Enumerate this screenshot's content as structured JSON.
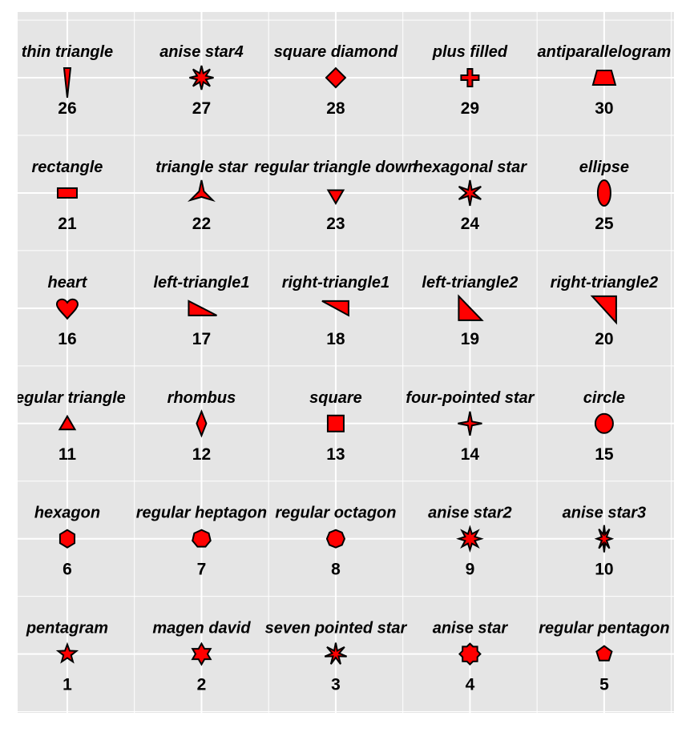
{
  "chart_data": {
    "type": "scatter",
    "title": "",
    "xlabel": "",
    "ylabel": "",
    "xlim": [
      0.63,
      5.52
    ],
    "ylim": [
      0.49,
      6.57
    ],
    "grid": true,
    "x_ticks_major": [
      1,
      2,
      3,
      4,
      5
    ],
    "x_ticks_minor": [
      1.5,
      2.5,
      3.5,
      4.5,
      5.5
    ],
    "y_ticks_major": [
      1,
      2,
      3,
      4,
      5,
      6
    ],
    "y_ticks_minor": [
      0.5,
      1.5,
      2.5,
      3.5,
      4.5,
      5.5,
      6.5
    ],
    "colors": {
      "panel": "#e5e5e5",
      "grid": "#ffffff",
      "fill": "#ff0000",
      "stroke": "#000000"
    },
    "points": [
      {
        "x": 1,
        "y": 1,
        "shape": 1,
        "label": "pentagram"
      },
      {
        "x": 2,
        "y": 1,
        "shape": 2,
        "label": "magen david"
      },
      {
        "x": 3,
        "y": 1,
        "shape": 3,
        "label": "seven pointed star"
      },
      {
        "x": 4,
        "y": 1,
        "shape": 4,
        "label": "anise star"
      },
      {
        "x": 5,
        "y": 1,
        "shape": 5,
        "label": "regular pentagon"
      },
      {
        "x": 1,
        "y": 2,
        "shape": 6,
        "label": "hexagon"
      },
      {
        "x": 2,
        "y": 2,
        "shape": 7,
        "label": "regular heptagon"
      },
      {
        "x": 3,
        "y": 2,
        "shape": 8,
        "label": "regular octagon"
      },
      {
        "x": 4,
        "y": 2,
        "shape": 9,
        "label": "anise star2"
      },
      {
        "x": 5,
        "y": 2,
        "shape": 10,
        "label": "anise star3"
      },
      {
        "x": 1,
        "y": 3,
        "shape": 11,
        "label": "regular triangle"
      },
      {
        "x": 2,
        "y": 3,
        "shape": 12,
        "label": "rhombus"
      },
      {
        "x": 3,
        "y": 3,
        "shape": 13,
        "label": "square"
      },
      {
        "x": 4,
        "y": 3,
        "shape": 14,
        "label": "four-pointed star"
      },
      {
        "x": 5,
        "y": 3,
        "shape": 15,
        "label": "circle"
      },
      {
        "x": 1,
        "y": 4,
        "shape": 16,
        "label": "heart"
      },
      {
        "x": 2,
        "y": 4,
        "shape": 17,
        "label": "left-triangle1"
      },
      {
        "x": 3,
        "y": 4,
        "shape": 18,
        "label": "right-triangle1"
      },
      {
        "x": 4,
        "y": 4,
        "shape": 19,
        "label": "left-triangle2"
      },
      {
        "x": 5,
        "y": 4,
        "shape": 20,
        "label": "right-triangle2"
      },
      {
        "x": 1,
        "y": 5,
        "shape": 21,
        "label": "rectangle"
      },
      {
        "x": 2,
        "y": 5,
        "shape": 22,
        "label": "triangle star"
      },
      {
        "x": 3,
        "y": 5,
        "shape": 23,
        "label": "regular triangle down"
      },
      {
        "x": 4,
        "y": 5,
        "shape": 24,
        "label": "hexagonal star"
      },
      {
        "x": 5,
        "y": 5,
        "shape": 25,
        "label": "ellipse"
      },
      {
        "x": 1,
        "y": 6,
        "shape": 26,
        "label": "thin triangle"
      },
      {
        "x": 2,
        "y": 6,
        "shape": 27,
        "label": "anise star4"
      },
      {
        "x": 3,
        "y": 6,
        "shape": 28,
        "label": "square diamond"
      },
      {
        "x": 4,
        "y": 6,
        "shape": 29,
        "label": "plus filled"
      },
      {
        "x": 5,
        "y": 6,
        "shape": 30,
        "label": "antiparallelogram"
      }
    ]
  }
}
